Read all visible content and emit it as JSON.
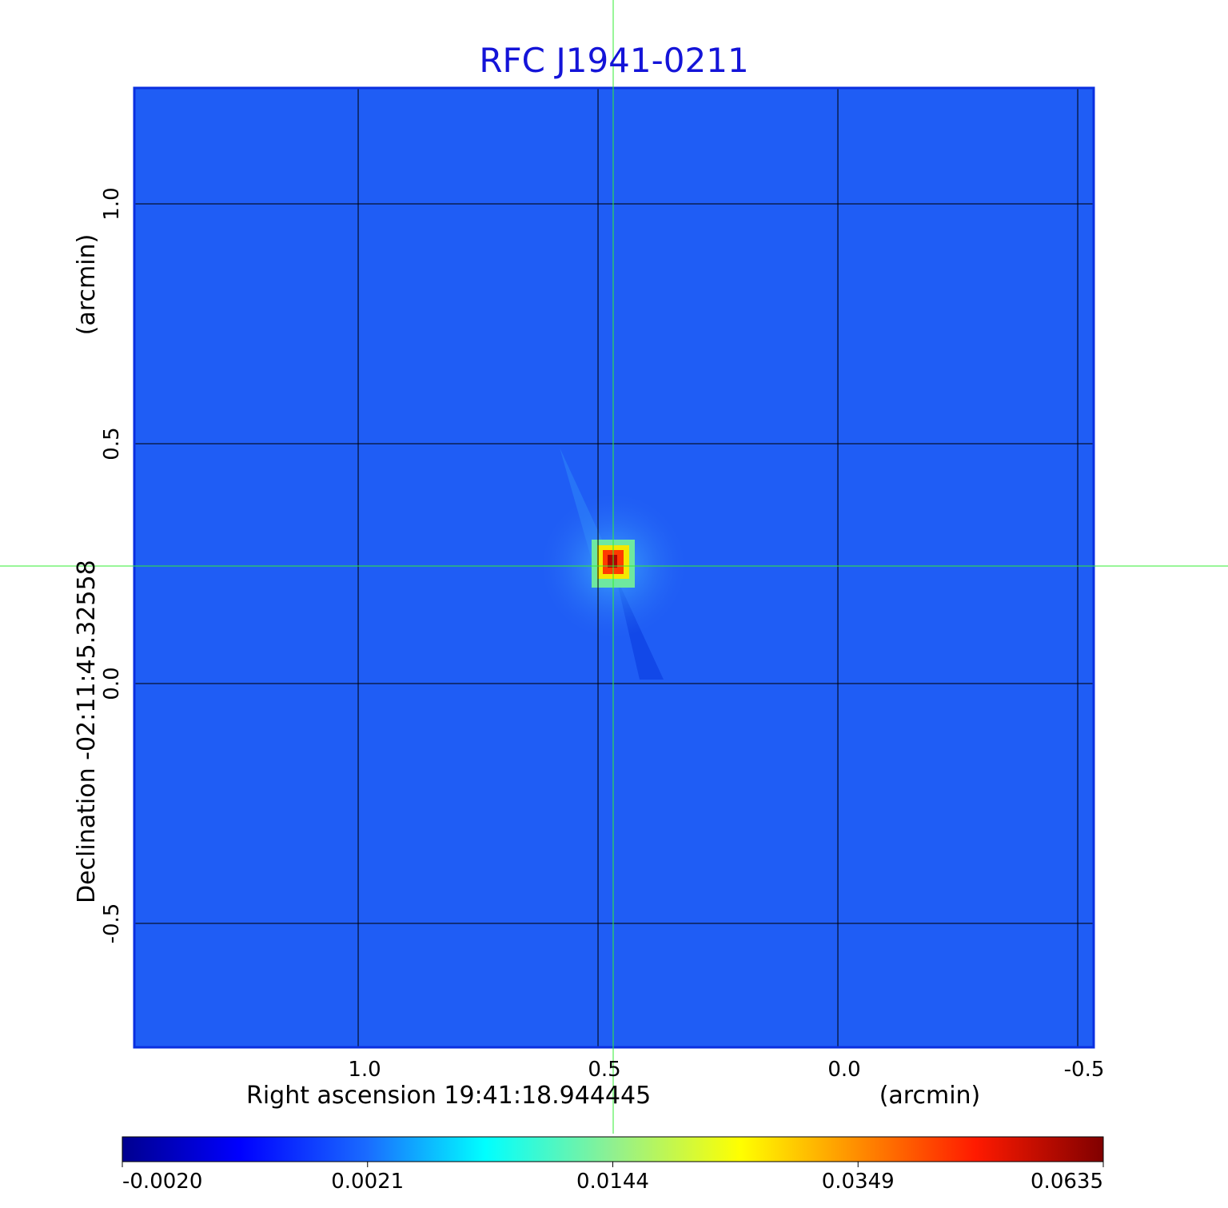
{
  "chart_data": {
    "type": "image",
    "title": "RFC J1941-0211",
    "x_label": "Right ascension  19:41:18.944445",
    "x_unit": "(arcmin)",
    "y_label": "Declination  -02:11:45.32558",
    "y_unit": "(arcmin)",
    "xlim": [
      1.4667,
      -0.5333
    ],
    "ylim": [
      -0.7583,
      1.2417
    ],
    "xticks": [
      {
        "value": 1.0,
        "label": "1.0"
      },
      0.5,
      {
        "value": 0.0,
        "label": "0.0"
      },
      -0.5
    ],
    "yticks": [
      -0.5,
      {
        "value": 0.0,
        "label": "0.0"
      },
      0.5,
      {
        "value": 1.0,
        "label": "1.0"
      }
    ],
    "grid": true,
    "colorbar_ticks": [
      {
        "value": -0.002,
        "label": "-0.0020"
      },
      0.0021,
      0.0144,
      0.0349,
      0.0635
    ]
  }
}
